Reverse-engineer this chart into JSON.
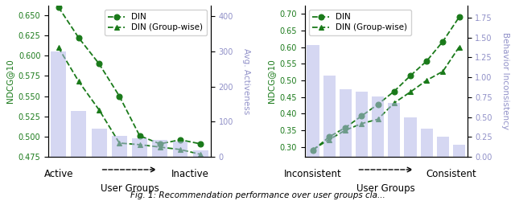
{
  "left": {
    "din": [
      0.66,
      0.622,
      0.59,
      0.55,
      0.501,
      0.491,
      0.496,
      0.491
    ],
    "din_gw": [
      0.61,
      0.568,
      0.533,
      0.492,
      0.49,
      0.487,
      0.484,
      0.478
    ],
    "bars": [
      300,
      130,
      80,
      60,
      52,
      47,
      43,
      18
    ],
    "ylabel_left": "NDCG@10",
    "ylabel_right": "Avg. Activeness",
    "ylim_left": [
      0.475,
      0.662
    ],
    "ylim_right": [
      0,
      430
    ],
    "yticks_left": [
      0.475,
      0.5,
      0.525,
      0.55,
      0.575,
      0.6,
      0.625,
      0.65
    ],
    "yticks_right": [
      0,
      100,
      200,
      300,
      400
    ],
    "xlabel_left": "Active",
    "xlabel_right": "Inactive"
  },
  "right": {
    "din": [
      0.29,
      0.33,
      0.358,
      0.393,
      0.428,
      0.467,
      0.514,
      0.558,
      0.617,
      0.69
    ],
    "din_gw": [
      0.292,
      0.322,
      0.35,
      0.37,
      0.383,
      0.432,
      0.465,
      0.5,
      0.527,
      0.6
    ],
    "bars": [
      1.4,
      1.02,
      0.85,
      0.82,
      0.76,
      0.68,
      0.5,
      0.35,
      0.25,
      0.15
    ],
    "ylabel_left": "NDCG@10",
    "ylabel_right": "Behavior Inconsistency",
    "ylim_left": [
      0.27,
      0.725
    ],
    "ylim_right": [
      0,
      1.9
    ],
    "yticks_left": [
      0.3,
      0.35,
      0.4,
      0.45,
      0.5,
      0.55,
      0.6,
      0.65,
      0.7
    ],
    "yticks_right": [
      0.0,
      0.25,
      0.5,
      0.75,
      1.0,
      1.25,
      1.5,
      1.75
    ],
    "xlabel_left": "Inconsistent",
    "xlabel_right": "Consistent"
  },
  "line_color": "#1a7a1a",
  "bar_color": "#b3b7e8",
  "bar_alpha": 0.55,
  "secondary_label_color": "#9090c8",
  "tick_fontsize": 7,
  "label_fontsize": 7.5,
  "legend_fontsize": 7.5
}
